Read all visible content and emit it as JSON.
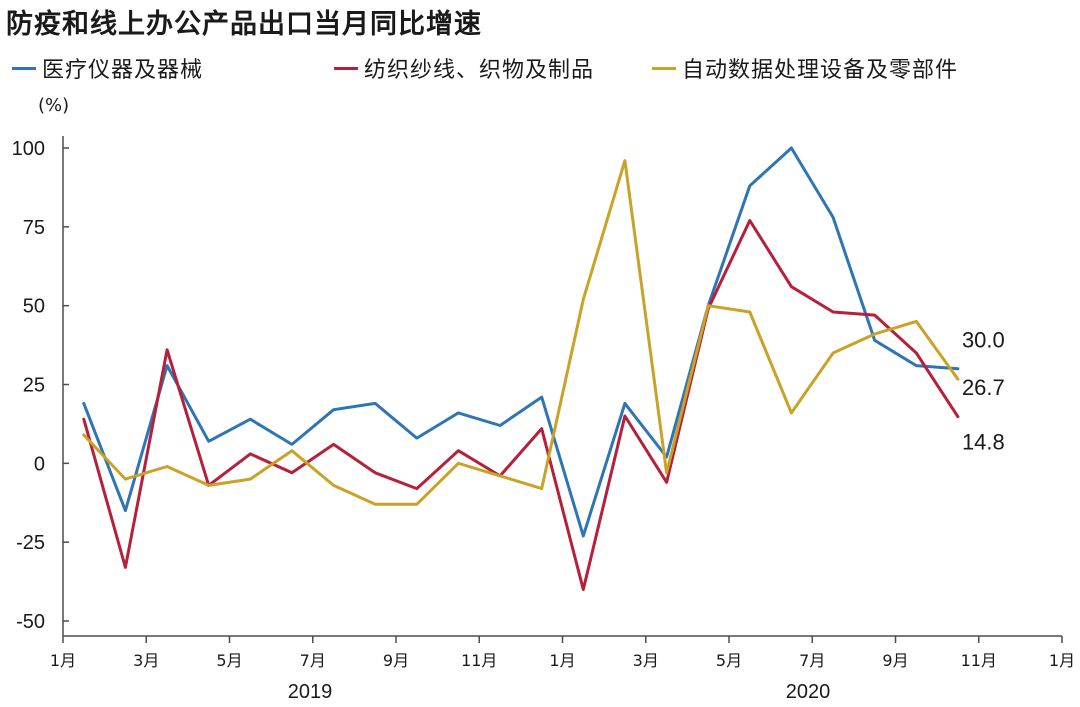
{
  "title": "防疫和线上办公产品出口当月同比增速",
  "unit": "(%)",
  "colors": {
    "medical": "#2e75b6",
    "textile": "#b5203a",
    "computer": "#c9a227",
    "axis": "#4d4d4d"
  },
  "legend": [
    {
      "name": "医疗仪器及器械",
      "color": "#2e75b6"
    },
    {
      "name": "纺织纱线、织物及制品",
      "color": "#b5203a"
    },
    {
      "name": "自动数据处理设备及零部件",
      "color": "#c9a227"
    }
  ],
  "chart_data": {
    "type": "line",
    "title": "防疫和线上办公产品出口当月同比增速",
    "ylabel": "(%)",
    "ylim": [
      -50,
      100
    ],
    "yticks": [
      100,
      75,
      50,
      25,
      0,
      -25,
      -50
    ],
    "x_ticks": [
      "1月",
      "3月",
      "5月",
      "7月",
      "9月",
      "11月",
      "1月",
      "3月",
      "5月",
      "7月",
      "9月",
      "11月",
      "1月"
    ],
    "year_labels": [
      "2019",
      "2020"
    ],
    "grid": false,
    "legend_position": "top",
    "x": [
      "2019-01",
      "2019-02",
      "2019-03",
      "2019-04",
      "2019-05",
      "2019-06",
      "2019-07",
      "2019-08",
      "2019-09",
      "2019-10",
      "2019-11",
      "2019-12",
      "2020-01",
      "2020-02",
      "2020-03",
      "2020-04",
      "2020-05",
      "2020-06",
      "2020-07",
      "2020-08",
      "2020-09",
      "2020-10"
    ],
    "series": [
      {
        "name": "医疗仪器及器械",
        "color": "#2e75b6",
        "values": [
          19,
          -15,
          31,
          7,
          14,
          6,
          17,
          19,
          8,
          16,
          12,
          21,
          -23,
          19,
          2,
          50,
          88,
          100,
          78,
          39,
          31,
          30.0
        ],
        "end_label": "30.0"
      },
      {
        "name": "纺织纱线、织物及制品",
        "color": "#b5203a",
        "values": [
          14,
          -33,
          36,
          -7,
          3,
          -3,
          6,
          -3,
          -8,
          4,
          -4,
          11,
          -40,
          15,
          -6,
          49,
          77,
          56,
          48,
          47,
          35,
          14.8
        ],
        "end_label": "14.8"
      },
      {
        "name": "自动数据处理设备及零部件",
        "color": "#c9a227",
        "values": [
          9,
          -5,
          -1,
          -7,
          -5,
          4,
          -7,
          -13,
          -13,
          0,
          -4,
          -8,
          52,
          96,
          -3,
          50,
          48,
          16,
          35,
          41,
          45,
          26.7
        ],
        "end_label": "26.7"
      }
    ]
  }
}
